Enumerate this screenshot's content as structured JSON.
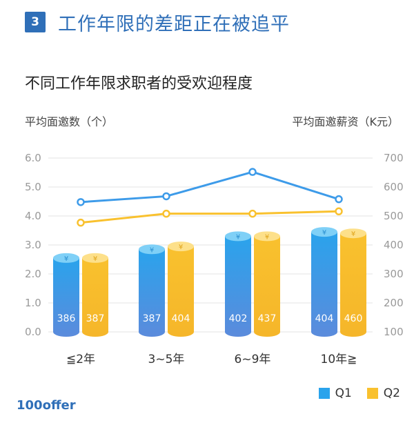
{
  "header": {
    "badge": "3",
    "title": "工作年限的差距正在被追平"
  },
  "subtitle": "不同工作年限求职者的受欢迎程度",
  "logo": "100offer",
  "colors": {
    "q1": "#2aa3ec",
    "q1_bottom": "#5b8bdc",
    "q2": "#f9c12e",
    "q2_bottom": "#f5b62a",
    "grid": "#e3e3e3",
    "axis_text": "#999999"
  },
  "chart_data": {
    "type": "bar",
    "ylabel_left": "平均面邀数（个）",
    "ylabel_right": "平均面邀薪资（K元）",
    "categories": [
      "≦2年",
      "3~5年",
      "6~9年",
      "10年≧"
    ],
    "ylim_left": [
      0,
      6
    ],
    "ylim_right": [
      100,
      700
    ],
    "yticks_left": [
      "0.0",
      "1.0",
      "2.0",
      "3.0",
      "4.0",
      "5.0",
      "6.0"
    ],
    "yticks_right": [
      "100",
      "200",
      "300",
      "400",
      "500",
      "600",
      "700"
    ],
    "bar_series": [
      {
        "name": "Q1",
        "values": [
          2.55,
          2.85,
          3.3,
          3.45
        ],
        "labels": [
          "386",
          "387",
          "402",
          "404"
        ]
      },
      {
        "name": "Q2",
        "values": [
          2.55,
          2.95,
          3.3,
          3.4
        ],
        "labels": [
          "387",
          "404",
          "437",
          "460"
        ]
      }
    ],
    "bar_icon": "¥",
    "line_series": [
      {
        "name": "Q1",
        "values": [
          548,
          568,
          652,
          558
        ]
      },
      {
        "name": "Q2",
        "values": [
          477,
          508,
          508,
          516
        ]
      }
    ],
    "legend": [
      "Q1",
      "Q2"
    ],
    "grid": true,
    "legend_position": "bottom-right"
  }
}
